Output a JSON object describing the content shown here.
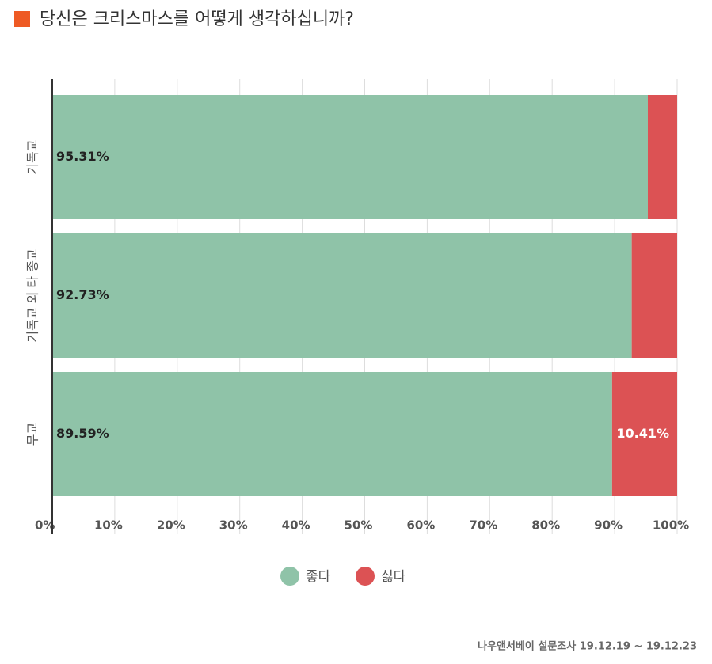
{
  "chart_data": {
    "type": "stacked-bar-horizontal",
    "title": "당신은 크리스마스를 어떻게 생각하십니까?",
    "categories": [
      "기독교",
      "기독교 외 타 종교",
      "무교"
    ],
    "series": [
      {
        "name": "좋다",
        "color": "#8fc3a8",
        "values": [
          95.31,
          92.73,
          89.59
        ],
        "value_labels": [
          "95.31%",
          "92.73%",
          "89.59%"
        ]
      },
      {
        "name": "싫다",
        "color": "#dc5254",
        "values": [
          4.69,
          7.27,
          10.41
        ],
        "value_labels": [
          null,
          null,
          "10.41%"
        ]
      }
    ],
    "xlim": [
      0,
      100
    ],
    "xticks": [
      {
        "value": 0,
        "label": "0%"
      },
      {
        "value": 10,
        "label": "10%"
      },
      {
        "value": 20,
        "label": "20%"
      },
      {
        "value": 30,
        "label": "30%"
      },
      {
        "value": 40,
        "label": "40%"
      },
      {
        "value": 50,
        "label": "50%"
      },
      {
        "value": 60,
        "label": "60%"
      },
      {
        "value": 70,
        "label": "70%"
      },
      {
        "value": 80,
        "label": "80%"
      },
      {
        "value": 90,
        "label": "90%"
      },
      {
        "value": 100,
        "label": "100%"
      }
    ],
    "grid": true,
    "legend": "bottom",
    "source": "나우앤서베이 설문조사 19.12.19 ~ 19.12.23"
  }
}
